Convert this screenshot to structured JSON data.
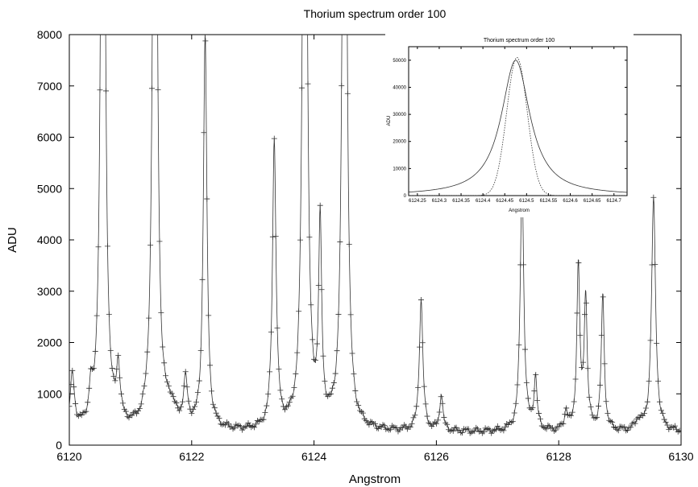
{
  "chart_data": [
    {
      "id": "main",
      "type": "line",
      "title": "Thorium spectrum order 100",
      "xlabel": "Angstrom",
      "ylabel": "ADU",
      "xlim": [
        6120,
        6130
      ],
      "ylim": [
        0,
        8000
      ],
      "xticks": [
        6120,
        6122,
        6124,
        6126,
        6128,
        6130
      ],
      "yticks": [
        0,
        1000,
        2000,
        3000,
        4000,
        5000,
        6000,
        7000,
        8000
      ],
      "grid": false,
      "series": [
        {
          "marker": "plus",
          "color": "#333333",
          "baseline": 250,
          "peaks": [
            {
              "x": 6120.05,
              "h": 1050,
              "w": 0.04
            },
            {
              "x": 6120.35,
              "h": 580,
              "w": 0.03
            },
            {
              "x": 6120.55,
              "h": 20000,
              "w": 0.035
            },
            {
              "x": 6120.8,
              "h": 1050,
              "w": 0.035
            },
            {
              "x": 6121.4,
              "h": 20000,
              "w": 0.035
            },
            {
              "x": 6121.65,
              "h": 380,
              "w": 0.1
            },
            {
              "x": 6121.9,
              "h": 850,
              "w": 0.04
            },
            {
              "x": 6122.22,
              "h": 7650,
              "w": 0.035
            },
            {
              "x": 6123.35,
              "h": 5600,
              "w": 0.035
            },
            {
              "x": 6123.85,
              "h": 20000,
              "w": 0.035
            },
            {
              "x": 6124.1,
              "h": 3800,
              "w": 0.03
            },
            {
              "x": 6124.5,
              "h": 20000,
              "w": 0.035
            },
            {
              "x": 6125.75,
              "h": 2550,
              "w": 0.035
            },
            {
              "x": 6126.08,
              "h": 720,
              "w": 0.03
            },
            {
              "x": 6127.4,
              "h": 4900,
              "w": 0.035
            },
            {
              "x": 6127.62,
              "h": 1000,
              "w": 0.03
            },
            {
              "x": 6128.12,
              "h": 380,
              "w": 0.03
            },
            {
              "x": 6128.32,
              "h": 3150,
              "w": 0.03
            },
            {
              "x": 6128.44,
              "h": 2580,
              "w": 0.03
            },
            {
              "x": 6128.72,
              "h": 2600,
              "w": 0.03
            },
            {
              "x": 6129.3,
              "h": 200,
              "w": 0.05
            },
            {
              "x": 6129.55,
              "h": 4500,
              "w": 0.04
            }
          ]
        }
      ]
    },
    {
      "id": "inset",
      "type": "line",
      "title": "Thorium spectrum order 100",
      "xlabel": "Angstrom",
      "ylabel": "ADU",
      "xlim": [
        6124.23,
        6124.73
      ],
      "ylim": [
        0,
        55000
      ],
      "xticks": [
        6124.25,
        6124.3,
        6124.35,
        6124.4,
        6124.45,
        6124.5,
        6124.55,
        6124.6,
        6124.65,
        6124.7
      ],
      "xtick_labels": [
        "6124.25",
        "6124.3",
        "6124.35",
        "6124.4",
        "6124.45",
        "6124.5",
        "6124.55",
        "6124.6",
        "6124.65",
        "6124.7"
      ],
      "yticks": [
        0,
        10000,
        20000,
        30000,
        40000,
        50000
      ],
      "grid": false,
      "series": [
        {
          "style": "solid",
          "center": 6124.475,
          "peak": 50000,
          "width": 0.04,
          "shape": "lorentzian"
        },
        {
          "style": "dotted",
          "center": 6124.478,
          "peak": 51000,
          "width": 0.035,
          "shape": "gaussian"
        }
      ]
    }
  ]
}
